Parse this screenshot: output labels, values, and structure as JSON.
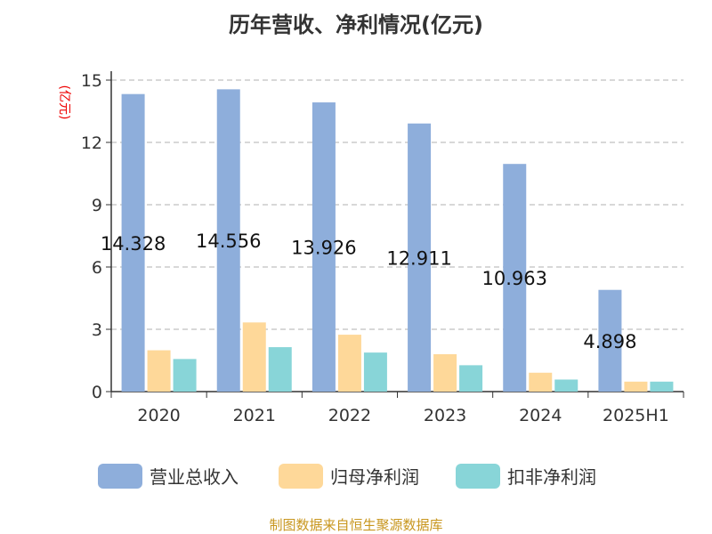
{
  "chart_data": {
    "type": "bar",
    "title": "历年营收、净利情况(亿元)",
    "ylabel": "(亿元)",
    "categories": [
      "2020",
      "2021",
      "2022",
      "2023",
      "2024",
      "2025H1"
    ],
    "ylim": [
      0,
      15
    ],
    "yticks": [
      0,
      3,
      6,
      9,
      12,
      15
    ],
    "grid": true,
    "legend_position": "bottom",
    "series": [
      {
        "name": "营业总收入",
        "color": "#8eaedb",
        "values": [
          14.328,
          14.556,
          13.926,
          12.911,
          10.963,
          4.898
        ],
        "labels": [
          "14.328",
          "14.556",
          "13.926",
          "12.911",
          "10.963",
          "4.898"
        ]
      },
      {
        "name": "归母净利润",
        "color": "#fed899",
        "values": [
          1.99,
          3.33,
          2.74,
          1.8,
          0.91,
          0.48
        ]
      },
      {
        "name": "扣非净利润",
        "color": "#88d5d8",
        "values": [
          1.57,
          2.14,
          1.88,
          1.27,
          0.58,
          0.48
        ]
      }
    ]
  },
  "source": "制图数据来自恒生聚源数据库"
}
